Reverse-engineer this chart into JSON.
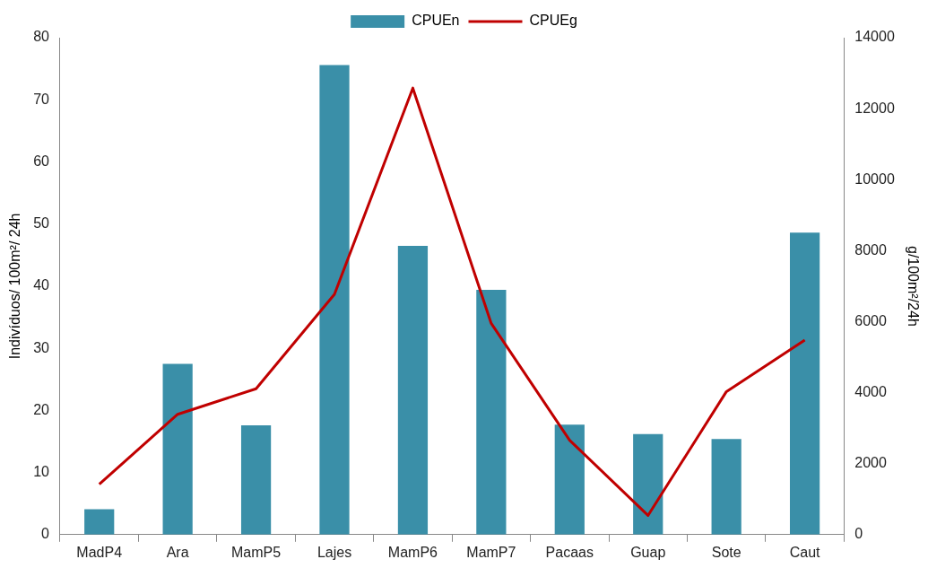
{
  "chart_data": {
    "type": "bar",
    "categories": [
      "MadP4",
      "Ara",
      "MamP5",
      "Lajes",
      "MamP6",
      "MamP7",
      "Pacaas",
      "Guap",
      "Sote",
      "Caut"
    ],
    "series": [
      {
        "name": "CPUEn",
        "color": "#3a8fa8",
        "values": [
          4.1,
          27.5,
          17.6,
          75.6,
          46.5,
          39.4,
          17.7,
          16.2,
          15.4,
          48.6
        ]
      },
      {
        "name": "CPUEg",
        "type": "line",
        "axis": "y2",
        "color": "#c00000",
        "values": [
          1420,
          3390,
          4110,
          6770,
          12580,
          5950,
          2660,
          540,
          4030,
          5480
        ]
      }
    ],
    "ylabel": "Indivíduos/ 100m²/ 24h",
    "y2label": "g/100m²/24h",
    "ylim": [
      0,
      80
    ],
    "yticks": [
      0,
      10,
      20,
      30,
      40,
      50,
      60,
      70,
      80
    ],
    "y2lim": [
      0,
      14000
    ],
    "y2ticks": [
      0,
      2000,
      4000,
      6000,
      8000,
      10000,
      12000,
      14000
    ],
    "grid": false,
    "legend": "top",
    "marker": "none",
    "line_style": "solid"
  }
}
